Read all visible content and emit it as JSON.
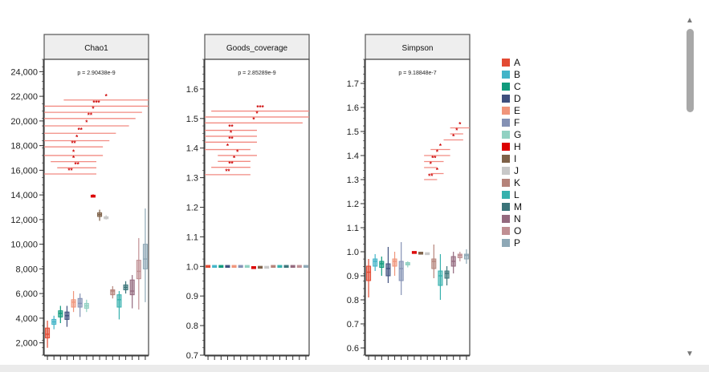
{
  "chart_data": [
    {
      "type": "box",
      "panel_title": "Chao1",
      "pvalue_label": "p = 2.90438e-9",
      "ylim": [
        1000,
        25000
      ],
      "y_ticks": [
        2000,
        4000,
        6000,
        8000,
        10000,
        12000,
        14000,
        16000,
        18000,
        20000,
        22000,
        24000
      ],
      "y_tick_labels": [
        "2,000",
        "4,000",
        "6,000",
        "8,000",
        "10,000",
        "12,000",
        "14,000",
        "16,000",
        "18,000",
        "20,000",
        "22,000",
        "24,000"
      ],
      "groups": [
        "A",
        "B",
        "C",
        "D",
        "E",
        "F",
        "G",
        "H",
        "I",
        "J",
        "K",
        "L",
        "M",
        "N",
        "O",
        "P"
      ],
      "boxes": [
        {
          "group": "A",
          "min": 1600,
          "q1": 2400,
          "median": 2700,
          "q3": 3200,
          "max": 3800
        },
        {
          "group": "B",
          "min": 3100,
          "q1": 3500,
          "median": 3700,
          "q3": 3900,
          "max": 4200
        },
        {
          "group": "C",
          "min": 3600,
          "q1": 4100,
          "median": 4400,
          "q3": 4600,
          "max": 5000
        },
        {
          "group": "D",
          "min": 3300,
          "q1": 3900,
          "median": 4200,
          "q3": 4500,
          "max": 5000
        },
        {
          "group": "E",
          "min": 4500,
          "q1": 4900,
          "median": 5300,
          "q3": 5500,
          "max": 6200
        },
        {
          "group": "F",
          "min": 4100,
          "q1": 4900,
          "median": 5200,
          "q3": 5600,
          "max": 6000
        },
        {
          "group": "G",
          "min": 4500,
          "q1": 4800,
          "median": 5000,
          "q3": 5200,
          "max": 5500
        },
        {
          "group": "H",
          "min": 13800,
          "q1": 13850,
          "median": 13900,
          "q3": 13950,
          "max": 14050
        },
        {
          "group": "I",
          "min": 11900,
          "q1": 12250,
          "median": 12400,
          "q3": 12550,
          "max": 12800
        },
        {
          "group": "J",
          "min": 12000,
          "q1": 12100,
          "median": 12150,
          "q3": 12200,
          "max": 12350
        },
        {
          "group": "K",
          "min": 5600,
          "q1": 5900,
          "median": 6200,
          "q3": 6300,
          "max": 6600
        },
        {
          "group": "L",
          "min": 3900,
          "q1": 4900,
          "median": 5500,
          "q3": 5900,
          "max": 6200
        },
        {
          "group": "M",
          "min": 6000,
          "q1": 6300,
          "median": 6500,
          "q3": 6700,
          "max": 7000
        },
        {
          "group": "N",
          "min": 4800,
          "q1": 5900,
          "median": 6200,
          "q3": 7100,
          "max": 7500
        },
        {
          "group": "O",
          "min": 4700,
          "q1": 7200,
          "median": 7800,
          "q3": 8700,
          "max": 10500
        },
        {
          "group": "P",
          "min": 5300,
          "q1": 8000,
          "median": 8800,
          "q3": 10000,
          "max": 12900
        }
      ],
      "significance_brackets": [
        {
          "label": "*",
          "from": "D",
          "to": "P",
          "y": 21700
        },
        {
          "label": "***",
          "from": "A",
          "to": "P",
          "y": 21200
        },
        {
          "label": "*",
          "from": "A",
          "to": "O",
          "y": 20700
        },
        {
          "label": "**",
          "from": "A",
          "to": "N",
          "y": 20200
        },
        {
          "label": "*",
          "from": "A",
          "to": "M",
          "y": 19600
        },
        {
          "label": "**",
          "from": "A",
          "to": "K",
          "y": 19000
        },
        {
          "label": "*",
          "from": "A",
          "to": "J",
          "y": 18400
        },
        {
          "label": "**",
          "from": "A",
          "to": "I",
          "y": 17900
        },
        {
          "label": "*",
          "from": "A",
          "to": "I",
          "y": 17200
        },
        {
          "label": "*",
          "from": "B",
          "to": "H",
          "y": 16700
        },
        {
          "label": "**",
          "from": "C",
          "to": "H",
          "y": 16200
        },
        {
          "label": "**",
          "from": "A",
          "to": "H",
          "y": 15700
        }
      ]
    },
    {
      "type": "box",
      "panel_title": "Goods_coverage",
      "pvalue_label": "p = 2.85289e-9",
      "ylim": [
        0.7,
        1.7
      ],
      "y_ticks": [
        0.7,
        0.8,
        0.9,
        1.0,
        1.1,
        1.2,
        1.3,
        1.4,
        1.5,
        1.6
      ],
      "y_tick_labels": [
        "0.7",
        "0.8",
        "0.9",
        "1.0",
        "1.1",
        "1.2",
        "1.3",
        "1.4",
        "1.5",
        "1.6"
      ],
      "groups": [
        "A",
        "B",
        "C",
        "D",
        "E",
        "F",
        "G",
        "H",
        "I",
        "J",
        "K",
        "L",
        "M",
        "N",
        "O",
        "P"
      ],
      "boxes": [
        {
          "group": "A",
          "min": 0.999,
          "q1": 0.9995,
          "median": 1.0,
          "q3": 1.0005,
          "max": 1.001
        },
        {
          "group": "B",
          "min": 0.999,
          "q1": 0.9995,
          "median": 1.0,
          "q3": 1.0005,
          "max": 1.001
        },
        {
          "group": "C",
          "min": 0.999,
          "q1": 0.9995,
          "median": 1.0,
          "q3": 1.0005,
          "max": 1.001
        },
        {
          "group": "D",
          "min": 0.999,
          "q1": 0.9995,
          "median": 1.0,
          "q3": 1.0005,
          "max": 1.001
        },
        {
          "group": "E",
          "min": 0.999,
          "q1": 0.9995,
          "median": 1.0,
          "q3": 1.0005,
          "max": 1.001
        },
        {
          "group": "F",
          "min": 0.999,
          "q1": 0.9995,
          "median": 1.0,
          "q3": 1.0005,
          "max": 1.001
        },
        {
          "group": "G",
          "min": 0.999,
          "q1": 0.9995,
          "median": 1.0,
          "q3": 1.0005,
          "max": 1.001
        },
        {
          "group": "H",
          "min": 0.994,
          "q1": 0.995,
          "median": 0.996,
          "q3": 0.997,
          "max": 0.998
        },
        {
          "group": "I",
          "min": 0.995,
          "q1": 0.996,
          "median": 0.997,
          "q3": 0.998,
          "max": 0.999
        },
        {
          "group": "J",
          "min": 0.995,
          "q1": 0.996,
          "median": 0.997,
          "q3": 0.998,
          "max": 0.999
        },
        {
          "group": "K",
          "min": 0.999,
          "q1": 0.9995,
          "median": 1.0,
          "q3": 1.0005,
          "max": 1.001
        },
        {
          "group": "L",
          "min": 0.999,
          "q1": 0.9995,
          "median": 1.0,
          "q3": 1.0005,
          "max": 1.001
        },
        {
          "group": "M",
          "min": 0.999,
          "q1": 0.9995,
          "median": 1.0,
          "q3": 1.0005,
          "max": 1.001
        },
        {
          "group": "N",
          "min": 0.999,
          "q1": 0.9995,
          "median": 1.0,
          "q3": 1.0005,
          "max": 1.001
        },
        {
          "group": "O",
          "min": 0.999,
          "q1": 0.9995,
          "median": 1.0,
          "q3": 1.0005,
          "max": 1.001
        },
        {
          "group": "P",
          "min": 0.999,
          "q1": 0.9995,
          "median": 1.0,
          "q3": 1.0005,
          "max": 1.001
        }
      ],
      "significance_brackets": [
        {
          "label": "***",
          "from": "B",
          "to": "P",
          "y": 1.525
        },
        {
          "label": "*",
          "from": "A",
          "to": "P",
          "y": 1.505
        },
        {
          "label": "*",
          "from": "A",
          "to": "O",
          "y": 1.485
        },
        {
          "label": "**",
          "from": "A",
          "to": "H",
          "y": 1.46
        },
        {
          "label": "*",
          "from": "A",
          "to": "H",
          "y": 1.44
        },
        {
          "label": "**",
          "from": "A",
          "to": "H",
          "y": 1.42
        },
        {
          "label": "*",
          "from": "A",
          "to": "G",
          "y": 1.395
        },
        {
          "label": "*",
          "from": "C",
          "to": "H",
          "y": 1.375
        },
        {
          "label": "*",
          "from": "C",
          "to": "G",
          "y": 1.355
        },
        {
          "label": "**",
          "from": "B",
          "to": "G",
          "y": 1.335
        },
        {
          "label": "**",
          "from": "A",
          "to": "G",
          "y": 1.31
        }
      ]
    },
    {
      "type": "box",
      "panel_title": "Simpson",
      "pvalue_label": "p = 9.18848e-7",
      "ylim": [
        0.57,
        1.8
      ],
      "y_ticks": [
        0.6,
        0.7,
        0.8,
        0.9,
        1.0,
        1.1,
        1.2,
        1.3,
        1.4,
        1.5,
        1.6,
        1.7
      ],
      "y_tick_labels": [
        "0.6",
        "0.7",
        "0.8",
        "0.9",
        "1.0",
        "1.1",
        "1.2",
        "1.3",
        "1.4",
        "1.5",
        "1.6",
        "1.7"
      ],
      "groups": [
        "A",
        "B",
        "C",
        "D",
        "E",
        "F",
        "G",
        "H",
        "I",
        "J",
        "K",
        "L",
        "M",
        "N",
        "O",
        "P"
      ],
      "boxes": [
        {
          "group": "A",
          "min": 0.81,
          "q1": 0.88,
          "median": 0.915,
          "q3": 0.94,
          "max": 0.97
        },
        {
          "group": "B",
          "min": 0.92,
          "q1": 0.94,
          "median": 0.96,
          "q3": 0.97,
          "max": 0.99
        },
        {
          "group": "C",
          "min": 0.9,
          "q1": 0.935,
          "median": 0.95,
          "q3": 0.96,
          "max": 0.98
        },
        {
          "group": "D",
          "min": 0.87,
          "q1": 0.9,
          "median": 0.93,
          "q3": 0.95,
          "max": 1.02
        },
        {
          "group": "E",
          "min": 0.9,
          "q1": 0.94,
          "median": 0.96,
          "q3": 0.97,
          "max": 1.0
        },
        {
          "group": "F",
          "min": 0.82,
          "q1": 0.88,
          "median": 0.93,
          "q3": 0.96,
          "max": 1.04
        },
        {
          "group": "G",
          "min": 0.935,
          "q1": 0.945,
          "median": 0.95,
          "q3": 0.955,
          "max": 0.96
        },
        {
          "group": "H",
          "min": 0.995,
          "q1": 0.996,
          "median": 0.997,
          "q3": 0.998,
          "max": 0.999
        },
        {
          "group": "I",
          "min": 0.99,
          "q1": 0.992,
          "median": 0.994,
          "q3": 0.996,
          "max": 0.998
        },
        {
          "group": "J",
          "min": 0.99,
          "q1": 0.991,
          "median": 0.992,
          "q3": 0.993,
          "max": 0.994
        },
        {
          "group": "K",
          "min": 0.89,
          "q1": 0.93,
          "median": 0.96,
          "q3": 0.97,
          "max": 1.03
        },
        {
          "group": "L",
          "min": 0.8,
          "q1": 0.86,
          "median": 0.9,
          "q3": 0.92,
          "max": 0.99
        },
        {
          "group": "M",
          "min": 0.86,
          "q1": 0.89,
          "median": 0.91,
          "q3": 0.92,
          "max": 0.94
        },
        {
          "group": "N",
          "min": 0.91,
          "q1": 0.94,
          "median": 0.96,
          "q3": 0.98,
          "max": 1.0
        },
        {
          "group": "O",
          "min": 0.96,
          "q1": 0.975,
          "median": 0.985,
          "q3": 0.99,
          "max": 1.0
        },
        {
          "group": "P",
          "min": 0.95,
          "q1": 0.97,
          "median": 0.985,
          "q3": 0.99,
          "max": 1.01
        }
      ],
      "significance_brackets": [
        {
          "label": "*",
          "from": "N",
          "to": "P",
          "y": 1.515
        },
        {
          "label": "*",
          "from": "N",
          "to": "O",
          "y": 1.49
        },
        {
          "label": "*",
          "from": "M",
          "to": "O",
          "y": 1.465
        },
        {
          "label": "*",
          "from": "K",
          "to": "M",
          "y": 1.425
        },
        {
          "label": "*",
          "from": "J",
          "to": "M",
          "y": 1.4
        },
        {
          "label": "**",
          "from": "J",
          "to": "L",
          "y": 1.375
        },
        {
          "label": "*",
          "from": "J",
          "to": "K",
          "y": 1.35
        },
        {
          "label": "*",
          "from": "K",
          "to": "L",
          "y": 1.325
        },
        {
          "label": "**",
          "from": "J",
          "to": "K",
          "y": 1.3
        }
      ]
    }
  ],
  "legend": {
    "position": "right",
    "items": [
      {
        "label": "A",
        "color": "#e34a33"
      },
      {
        "label": "B",
        "color": "#42b4c8"
      },
      {
        "label": "C",
        "color": "#0f9a7c"
      },
      {
        "label": "D",
        "color": "#3e4f7d"
      },
      {
        "label": "E",
        "color": "#f0957b"
      },
      {
        "label": "F",
        "color": "#8491b4"
      },
      {
        "label": "G",
        "color": "#91d1c2"
      },
      {
        "label": "H",
        "color": "#dc0000"
      },
      {
        "label": "I",
        "color": "#7e6148"
      },
      {
        "label": "J",
        "color": "#c8c8c8"
      },
      {
        "label": "K",
        "color": "#b5837a"
      },
      {
        "label": "L",
        "color": "#35b1ad"
      },
      {
        "label": "M",
        "color": "#3b7479"
      },
      {
        "label": "N",
        "color": "#94697e"
      },
      {
        "label": "O",
        "color": "#c08f93"
      },
      {
        "label": "P",
        "color": "#8ea8b6"
      }
    ]
  },
  "style": {
    "bracket_color": "#f28b82",
    "star_color": "#cc0000",
    "strip_fill": "#eeeeee",
    "axis_color": "#333333"
  },
  "ui": {
    "scroll_up_icon": "▲",
    "scroll_down_icon": "▼"
  }
}
